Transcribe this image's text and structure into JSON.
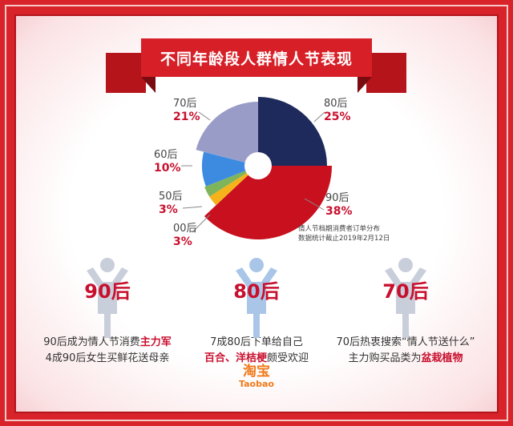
{
  "title": "不同年龄段人群情人节表现",
  "chart_data": {
    "type": "pie",
    "title": "不同年龄段人群情人节表现",
    "categories": [
      "80后",
      "90后",
      "00后",
      "50后",
      "60后",
      "70后"
    ],
    "values": [
      25,
      38,
      3,
      3,
      10,
      21
    ],
    "labels": [
      "25%",
      "38%",
      "3%",
      "3%",
      "10%",
      "21%"
    ],
    "colors": [
      "#1f2a5c",
      "#c8101e",
      "#f5b21b",
      "#7fb55a",
      "#3d8be0",
      "#9a9cc8"
    ],
    "note": [
      "情人节档期消费者订单分布",
      "数据统计截止2019年2月12日"
    ]
  },
  "cards": [
    {
      "age": "90后",
      "line1_a": "90后成为情人节消费",
      "line1_hl": "主力军",
      "line1_b": "",
      "line2_a": "4成90后女生买鲜花送母亲",
      "line2_hl": "",
      "line2_b": "",
      "figure_color": "#c9cedb"
    },
    {
      "age": "80后",
      "line1_a": "7成80后下单给自己",
      "line1_hl": "",
      "line1_b": "",
      "line2_a": "",
      "line2_hl": "百合、洋桔梗",
      "line2_b": "颇受欢迎",
      "figure_color": "#a9c6e8"
    },
    {
      "age": "70后",
      "line1_a": "70后热衷搜索“情人节送什么”",
      "line1_hl": "",
      "line1_b": "",
      "line2_a": "主力购买品类为",
      "line2_hl": "盆栽植物",
      "line2_b": "",
      "figure_color": "#c9cedb"
    }
  ],
  "brand": {
    "cn": "淘宝",
    "en": "Taobao"
  }
}
